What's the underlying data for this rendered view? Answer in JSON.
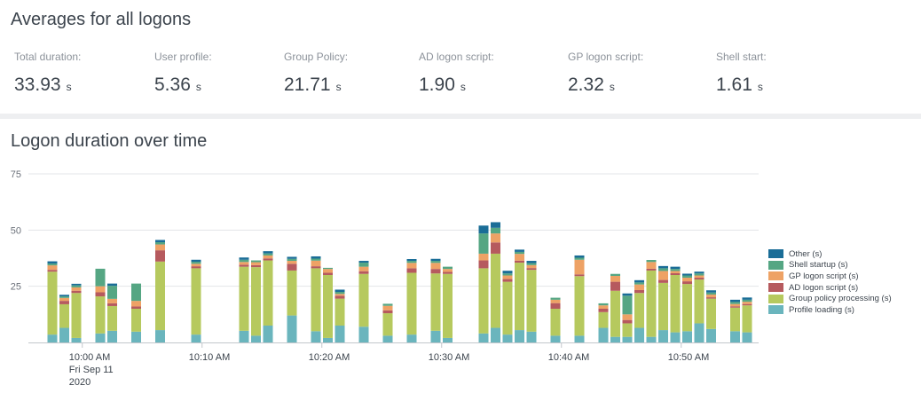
{
  "averages": {
    "title": "Averages for all logons",
    "stats": [
      {
        "label": "Total duration:",
        "value": "33.93",
        "unit": "s"
      },
      {
        "label": "User profile:",
        "value": "5.36",
        "unit": "s"
      },
      {
        "label": "Group Policy:",
        "value": "21.71",
        "unit": "s"
      },
      {
        "label": "AD logon script:",
        "value": "1.90",
        "unit": "s"
      },
      {
        "label": "GP logon script:",
        "value": "2.32",
        "unit": "s"
      },
      {
        "label": "Shell start:",
        "value": "1.61",
        "unit": "s"
      }
    ]
  },
  "chart_panel": {
    "title": "Logon duration over time"
  },
  "colors": {
    "Profile loading (s)": "#6ab5bd",
    "Group policy processing (s)": "#b6c95e",
    "AD logon script (s)": "#b65a5e",
    "GP logon script (s)": "#eea265",
    "Shell startup (s)": "#55a683",
    "Other (s)": "#1a6d97"
  },
  "chart_data": {
    "type": "bar",
    "stacked": true,
    "x_unit": "minute",
    "ylim": [
      0,
      75
    ],
    "y_ticks": [
      25,
      50,
      75
    ],
    "x_ticks": [
      {
        "x": "09:59:30",
        "label": "10:00 AM",
        "sublabels": [
          "Fri Sep 11",
          "2020"
        ]
      },
      {
        "x": "10:09:30",
        "label": "10:10 AM",
        "sublabels": []
      },
      {
        "x": "10:19:30",
        "label": "10:20 AM",
        "sublabels": []
      },
      {
        "x": "10:29:30",
        "label": "10:30 AM",
        "sublabels": []
      },
      {
        "x": "10:39:30",
        "label": "10:40 AM",
        "sublabels": []
      },
      {
        "x": "10:49:30",
        "label": "10:50 AM",
        "sublabels": []
      }
    ],
    "legend_position": "right",
    "legend_order": [
      "Other (s)",
      "Shell startup (s)",
      "GP logon script (s)",
      "AD logon script (s)",
      "Group policy processing (s)",
      "Profile loading (s)"
    ],
    "series_order": [
      "Profile loading (s)",
      "Group policy processing (s)",
      "AD logon script (s)",
      "GP logon script (s)",
      "Shell startup (s)",
      "Other (s)"
    ],
    "x": [
      "09:57",
      "09:58",
      "09:59",
      "10:01",
      "10:02",
      "10:04",
      "10:06",
      "10:09",
      "10:13",
      "10:14",
      "10:15",
      "10:17",
      "10:19",
      "10:20",
      "10:21",
      "10:23",
      "10:25",
      "10:27",
      "10:29",
      "10:30",
      "10:33",
      "10:34",
      "10:35",
      "10:36",
      "10:37",
      "10:39",
      "10:41",
      "10:43",
      "10:44",
      "10:45",
      "10:46",
      "10:47",
      "10:48",
      "10:49",
      "10:50",
      "10:51",
      "10:52",
      "10:54",
      "10:55"
    ],
    "series": [
      {
        "name": "Profile loading (s)",
        "values": [
          3.5,
          6.5,
          2,
          4,
          5.2,
          4.8,
          5.5,
          3.5,
          5.2,
          3,
          7.5,
          12,
          5,
          2,
          7.5,
          7,
          3,
          3.5,
          5.2,
          2,
          4,
          6.5,
          3.5,
          5.5,
          4.8,
          3,
          3,
          6.5,
          2.5,
          2.5,
          6.5,
          2.5,
          5.5,
          4.5,
          5,
          8.5,
          6,
          5,
          4.5
        ]
      },
      {
        "name": "Group policy processing (s)",
        "values": [
          28,
          10.5,
          20,
          16.5,
          11,
          10.2,
          30.5,
          29.5,
          28.5,
          30.5,
          29,
          20,
          28,
          28,
          12,
          23.5,
          10,
          27.5,
          25.5,
          28.5,
          29,
          33,
          23.5,
          30,
          27.5,
          12,
          26.5,
          7,
          20.5,
          6,
          15.5,
          29.5,
          21,
          25.5,
          21,
          19.5,
          13.5,
          10.5,
          12
        ]
      },
      {
        "name": "AD logon script (s)",
        "values": [
          0.8,
          1.5,
          1,
          1.8,
          1.2,
          1,
          5,
          0.9,
          0.9,
          0.9,
          0.9,
          3,
          0.9,
          1,
          1.3,
          1.2,
          1.3,
          2,
          2,
          0.9,
          3.5,
          5,
          1.2,
          0.9,
          0.8,
          2.5,
          0.8,
          1.5,
          4,
          1.5,
          1.3,
          0.8,
          1.3,
          0.8,
          1.2,
          0.8,
          0.6,
          0.6,
          0.6
        ]
      },
      {
        "name": "GP logon script (s)",
        "values": [
          2,
          1.3,
          1.5,
          2.7,
          2,
          2.5,
          2.6,
          1.1,
          1.2,
          1.3,
          1.3,
          1.3,
          2.5,
          1.7,
          0.8,
          2,
          2,
          2.4,
          2.7,
          1.3,
          3,
          4,
          1.6,
          3,
          1.3,
          1.5,
          6.5,
          1.5,
          2.6,
          2.5,
          2.5,
          3,
          4,
          1,
          1.6,
          1,
          1.2,
          1,
          1
        ]
      },
      {
        "name": "Shell startup (s)",
        "values": [
          0.8,
          0.7,
          0.9,
          7.8,
          5.8,
          7.7,
          1,
          0.9,
          1,
          0.8,
          0.9,
          0.9,
          0.9,
          0.5,
          0.9,
          1.8,
          0.9,
          0.9,
          0.9,
          1,
          9,
          2.5,
          0.9,
          0.9,
          0.9,
          0.9,
          0.9,
          0.9,
          0.9,
          8.3,
          0.9,
          0.9,
          1.2,
          0.9,
          1,
          0.9,
          0.9,
          0.9,
          0.9
        ]
      },
      {
        "name": "Other (s)",
        "values": [
          1,
          0.7,
          0.7,
          0,
          1,
          0,
          1,
          0.9,
          1,
          0,
          1,
          0.9,
          1,
          0,
          1,
          0.8,
          0,
          0.8,
          0.9,
          0,
          3.5,
          2.5,
          1.2,
          1,
          1,
          0,
          1,
          0,
          0,
          1,
          1,
          0,
          1,
          1,
          0.8,
          0.8,
          1,
          1,
          1
        ]
      }
    ]
  }
}
